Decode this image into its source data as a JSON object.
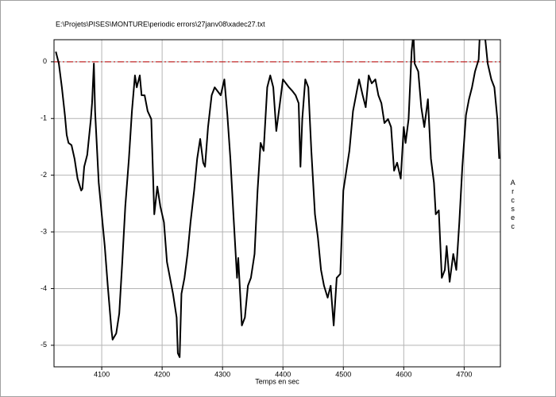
{
  "chart_data": {
    "type": "line",
    "title": "E:\\Projets\\PISES\\MONTURE\\periodic errors\\27janv08\\xadec27.txt",
    "x_label": "Temps en sec",
    "y_label": "Arcsec",
    "color": "#000000",
    "grid": true,
    "reference_line": {
      "value": 0,
      "color": "#c00000"
    },
    "xlim": [
      4021,
      4760
    ],
    "ylim": [
      -5.38,
      0.39
    ],
    "xticks": [
      4100,
      4200,
      4300,
      4400,
      4500,
      4600,
      4700
    ],
    "yticks": [
      -5,
      -4,
      -3,
      -2,
      -1,
      0
    ],
    "x": [
      4024,
      4029,
      4034,
      4039,
      4042,
      4045,
      4050,
      4055,
      4060,
      4066,
      4068,
      4071,
      4076,
      4082,
      4084,
      4087,
      4089,
      4095,
      4100,
      4105,
      4110,
      4116,
      4118,
      4124,
      4129,
      4134,
      4139,
      4145,
      4150,
      4155,
      4158,
      4163,
      4166,
      4171,
      4176,
      4182,
      4187,
      4192,
      4197,
      4203,
      4208,
      4213,
      4218,
      4224,
      4226,
      4229,
      4232,
      4237,
      4242,
      4247,
      4253,
      4258,
      4263,
      4268,
      4271,
      4276,
      4282,
      4287,
      4292,
      4297,
      4303,
      4308,
      4313,
      4318,
      4324,
      4326,
      4332,
      4337,
      4342,
      4347,
      4353,
      4358,
      4363,
      4368,
      4374,
      4379,
      4384,
      4389,
      4395,
      4400,
      4405,
      4410,
      4416,
      4421,
      4426,
      4429,
      4432,
      4437,
      4442,
      4447,
      4453,
      4458,
      4463,
      4468,
      4474,
      4479,
      4484,
      4489,
      4495,
      4500,
      4505,
      4510,
      4516,
      4521,
      4526,
      4532,
      4537,
      4542,
      4547,
      4553,
      4558,
      4563,
      4568,
      4574,
      4579,
      4584,
      4589,
      4595,
      4600,
      4603,
      4608,
      4613,
      4616,
      4618,
      4624,
      4629,
      4634,
      4640,
      4645,
      4650,
      4653,
      4658,
      4663,
      4668,
      4671,
      4676,
      4682,
      4687,
      4692,
      4697,
      4703,
      4708,
      4713,
      4718,
      4724,
      4726,
      4734,
      4739,
      4745,
      4750,
      4755,
      4758
    ],
    "values": [
      0.18,
      -0.03,
      -0.45,
      -0.94,
      -1.29,
      -1.43,
      -1.47,
      -1.71,
      -2.06,
      -2.27,
      -2.24,
      -1.85,
      -1.64,
      -1.01,
      -0.73,
      -0.03,
      -0.87,
      -2.13,
      -2.69,
      -3.25,
      -3.95,
      -4.72,
      -4.9,
      -4.79,
      -4.44,
      -3.53,
      -2.55,
      -1.71,
      -0.87,
      -0.24,
      -0.45,
      -0.24,
      -0.59,
      -0.59,
      -0.87,
      -1.01,
      -2.69,
      -2.2,
      -2.55,
      -2.83,
      -3.53,
      -3.81,
      -4.09,
      -4.51,
      -5.14,
      -5.21,
      -4.09,
      -3.81,
      -3.39,
      -2.83,
      -2.27,
      -1.71,
      -1.36,
      -1.78,
      -1.85,
      -1.15,
      -0.59,
      -0.45,
      -0.52,
      -0.59,
      -0.31,
      -0.94,
      -1.71,
      -2.69,
      -3.81,
      -3.46,
      -4.65,
      -4.51,
      -3.95,
      -3.81,
      -3.39,
      -2.27,
      -1.43,
      -1.57,
      -0.45,
      -0.24,
      -0.45,
      -1.22,
      -0.73,
      -0.31,
      -0.38,
      -0.45,
      -0.52,
      -0.59,
      -0.73,
      -1.85,
      -1.01,
      -0.31,
      -0.45,
      -1.57,
      -2.69,
      -3.11,
      -3.67,
      -3.95,
      -4.16,
      -3.95,
      -4.65,
      -3.81,
      -3.74,
      -2.27,
      -1.92,
      -1.57,
      -0.87,
      -0.59,
      -0.31,
      -0.59,
      -0.8,
      -0.24,
      -0.38,
      -0.31,
      -0.59,
      -0.73,
      -1.08,
      -1.01,
      -1.15,
      -1.92,
      -1.78,
      -2.06,
      -1.15,
      -1.43,
      -1.01,
      0.18,
      0.5,
      -0.03,
      -0.17,
      -0.8,
      -1.15,
      -0.66,
      -1.71,
      -2.13,
      -2.69,
      -2.62,
      -3.81,
      -3.67,
      -3.25,
      -3.88,
      -3.39,
      -3.67,
      -2.83,
      -1.85,
      -0.94,
      -0.66,
      -0.45,
      -0.17,
      0.04,
      0.5,
      0.5,
      -0.03,
      -0.31,
      -0.45,
      -1.01,
      -1.71
    ]
  }
}
